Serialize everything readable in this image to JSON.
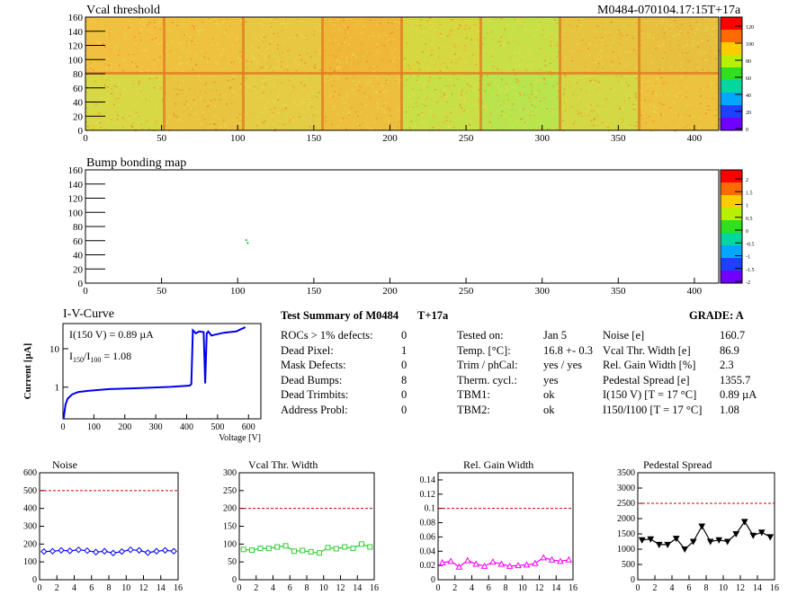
{
  "module_id": "M0484-070104.17:15T+17a",
  "vcal_map": {
    "title": "Vcal threshold",
    "x_ticks": [
      "0",
      "50",
      "100",
      "150",
      "200",
      "250",
      "300",
      "350",
      "400"
    ],
    "y_ticks": [
      "0",
      "20",
      "40",
      "60",
      "80",
      "100",
      "120",
      "140",
      "160"
    ],
    "scale_ticks": [
      "120",
      "100",
      "80",
      "60",
      "40",
      "20",
      "0"
    ]
  },
  "bump_map": {
    "title": "Bump bonding map",
    "x_ticks": [
      "0",
      "50",
      "100",
      "150",
      "200",
      "250",
      "300",
      "350",
      "400"
    ],
    "y_ticks": [
      "0",
      "20",
      "40",
      "60",
      "80",
      "100",
      "120",
      "140",
      "160"
    ],
    "scale_ticks": [
      "2",
      "1.5",
      "1",
      "0.5",
      "0",
      "-0.5",
      "-1",
      "-1.5",
      "-2"
    ]
  },
  "iv_curve": {
    "title": "I-V-Curve",
    "ylabel": "Current [µA]",
    "xlabel": "Voltage [V]",
    "x_ticks": [
      "0",
      "100",
      "200",
      "300",
      "400",
      "500",
      "600"
    ],
    "y_ticks": [
      "1",
      "10"
    ],
    "annotation_1": "I(150 V) = 0.89 µA",
    "annotation_2_main": "I",
    "annotation_2_sub1": "150",
    "annotation_2_sep": "/I",
    "annotation_2_sub2": "100",
    "annotation_2_value": "=  1.08"
  },
  "summary": {
    "title": "Test Summary of M0484",
    "tag": "T+17a",
    "grade": "GRADE:  A",
    "left_labels": [
      "ROCs > 1% defects:",
      "Dead Pixel:",
      "Mask Defects:",
      "Dead Bumps:",
      "Dead Trimbits:",
      "Address Probl:"
    ],
    "left_values": [
      "0",
      "1",
      "0",
      "8",
      "0",
      "0"
    ],
    "mid_labels": [
      "Tested on:",
      "Temp. [°C]:",
      "Trim / phCal:",
      "Therm. cycl.:",
      "TBM1:",
      "TBM2:"
    ],
    "mid_values": [
      "Jan 5",
      "16.8 +- 0.3",
      "yes / yes",
      "yes",
      "ok",
      "ok"
    ],
    "right_labels": [
      "Noise [e]",
      "Vcal Thr. Width [e]",
      "Rel. Gain Width [%]",
      "Pedestal Spread [e]",
      "I(150 V) [T = 17 °C]",
      "I150/I100 [T = 17 °C]"
    ],
    "right_values": [
      "160.7",
      "86.9",
      "2.3",
      "1355.7",
      "0.89 µA",
      "1.08"
    ]
  },
  "chart_data": [
    {
      "type": "line",
      "title": "Noise",
      "x": [
        0,
        1,
        2,
        3,
        4,
        5,
        6,
        7,
        8,
        9,
        10,
        11,
        12,
        13,
        14,
        15
      ],
      "values": [
        158,
        160,
        165,
        162,
        168,
        163,
        155,
        160,
        150,
        158,
        168,
        165,
        152,
        160,
        165,
        160
      ],
      "ylim": [
        0,
        600
      ],
      "xlim": [
        0,
        16
      ],
      "y_ticks": [
        0,
        100,
        200,
        300,
        400,
        500,
        600
      ],
      "x_ticks": [
        0,
        2,
        4,
        6,
        8,
        10,
        12,
        14,
        16
      ],
      "threshold": 500,
      "color": "#0000ff",
      "marker": "diamond"
    },
    {
      "type": "line",
      "title": "Vcal Thr. Width",
      "x": [
        0,
        1,
        2,
        3,
        4,
        5,
        6,
        7,
        8,
        9,
        10,
        11,
        12,
        13,
        14,
        15
      ],
      "values": [
        85,
        83,
        88,
        88,
        92,
        95,
        80,
        82,
        78,
        75,
        90,
        87,
        92,
        88,
        100,
        92
      ],
      "ylim": [
        0,
        300
      ],
      "xlim": [
        0,
        16
      ],
      "y_ticks": [
        0,
        50,
        100,
        150,
        200,
        250,
        300
      ],
      "x_ticks": [
        0,
        2,
        4,
        6,
        8,
        10,
        12,
        14,
        16
      ],
      "threshold": 200,
      "color": "#33cc33",
      "marker": "square"
    },
    {
      "type": "line",
      "title": "Rel. Gain Width",
      "x": [
        0,
        1,
        2,
        3,
        4,
        5,
        6,
        7,
        8,
        9,
        10,
        11,
        12,
        13,
        14,
        15
      ],
      "values": [
        0.024,
        0.026,
        0.018,
        0.027,
        0.022,
        0.019,
        0.025,
        0.022,
        0.019,
        0.02,
        0.021,
        0.023,
        0.031,
        0.028,
        0.026,
        0.028
      ],
      "ylim": [
        0,
        0.15
      ],
      "xlim": [
        0,
        16
      ],
      "y_ticks": [
        0,
        0.02,
        0.04,
        0.06,
        0.08,
        0.1,
        0.12,
        0.14
      ],
      "x_ticks": [
        0,
        2,
        4,
        6,
        8,
        10,
        12,
        14,
        16
      ],
      "threshold": 0.1,
      "color": "#ff00ff",
      "marker": "triangle"
    },
    {
      "type": "line",
      "title": "Pedestal Spread",
      "x": [
        0,
        1,
        2,
        3,
        4,
        5,
        6,
        7,
        8,
        9,
        10,
        11,
        12,
        13,
        14,
        15
      ],
      "values": [
        1300,
        1330,
        1150,
        1150,
        1350,
        1000,
        1250,
        1750,
        1250,
        1300,
        1250,
        1500,
        1900,
        1450,
        1550,
        1400
      ],
      "ylim": [
        0,
        3500
      ],
      "xlim": [
        0,
        16
      ],
      "y_ticks": [
        0,
        500,
        1000,
        1500,
        2000,
        2500,
        3000,
        3500
      ],
      "x_ticks": [
        0,
        2,
        4,
        6,
        8,
        10,
        12,
        14,
        16
      ],
      "threshold": 2500,
      "color": "#000000",
      "marker": "triangle-down"
    }
  ],
  "colors": {
    "threshold_line": "#cc0000",
    "iv_curve": "#0000ee"
  }
}
